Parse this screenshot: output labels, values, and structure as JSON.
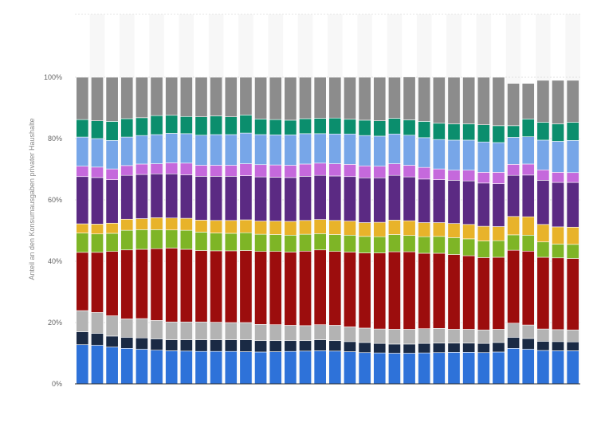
{
  "chart_data": {
    "type": "bar",
    "stacked": true,
    "normalized": true,
    "title": "",
    "xlabel": "",
    "ylabel": "Anteil an den Konsumausgaben privater Haushalte",
    "ylim": [
      0,
      100
    ],
    "yticks": [
      0,
      20,
      40,
      60,
      80,
      100
    ],
    "ytick_labels": [
      "0%",
      "20%",
      "40%",
      "60%",
      "80%",
      "100%"
    ],
    "grid": true,
    "legend": "none",
    "x_tick_labels_visible": false,
    "bar_count": 34,
    "series": [
      {
        "color": "#2e72d9",
        "values": [
          12.8,
          12.6,
          12.0,
          11.6,
          11.3,
          11.0,
          10.8,
          10.7,
          10.6,
          10.6,
          10.6,
          10.5,
          10.4,
          10.5,
          10.6,
          10.7,
          10.8,
          10.7,
          10.5,
          10.2,
          10.1,
          10.0,
          10.0,
          10.1,
          10.2,
          10.3,
          10.3,
          10.2,
          10.4,
          11.6,
          11.3,
          10.9,
          10.8,
          10.8
        ]
      },
      {
        "color": "#1a2a44",
        "values": [
          4.2,
          3.9,
          3.6,
          3.6,
          3.7,
          3.7,
          3.6,
          3.7,
          3.8,
          3.8,
          3.8,
          3.9,
          3.7,
          3.6,
          3.5,
          3.4,
          3.6,
          3.4,
          3.3,
          3.3,
          3.1,
          3.0,
          3.0,
          3.1,
          3.1,
          3.0,
          3.0,
          3.0,
          3.1,
          3.6,
          3.5,
          3.0,
          3.0,
          2.9
        ]
      },
      {
        "color": "#b3b3b3",
        "values": [
          6.9,
          6.8,
          6.6,
          6.0,
          6.3,
          6.0,
          5.8,
          5.8,
          5.8,
          5.7,
          5.6,
          5.6,
          5.3,
          5.2,
          5.0,
          4.9,
          4.9,
          5.0,
          4.8,
          4.7,
          4.7,
          4.8,
          4.8,
          4.8,
          4.8,
          4.5,
          4.5,
          4.4,
          4.3,
          4.6,
          4.4,
          4.0,
          3.9,
          3.9
        ]
      },
      {
        "color": "#9c0d0d",
        "values": [
          19.0,
          19.6,
          21.0,
          22.5,
          22.6,
          23.4,
          24.1,
          23.7,
          23.3,
          23.3,
          23.4,
          23.5,
          23.8,
          23.9,
          23.9,
          24.3,
          24.4,
          24.1,
          24.4,
          24.5,
          24.8,
          25.3,
          25.3,
          24.6,
          24.5,
          24.4,
          24.0,
          23.6,
          23.5,
          23.8,
          24.1,
          23.4,
          23.4,
          23.3
        ]
      },
      {
        "color": "#7eb526",
        "values": [
          6.3,
          6.0,
          5.9,
          6.4,
          6.4,
          6.2,
          5.9,
          6.2,
          6.0,
          5.8,
          5.7,
          5.8,
          5.6,
          5.5,
          5.5,
          5.5,
          5.3,
          5.5,
          5.5,
          5.4,
          5.3,
          5.6,
          5.3,
          5.4,
          5.5,
          5.5,
          5.5,
          5.4,
          5.4,
          5.0,
          5.2,
          5.0,
          4.5,
          4.6
        ]
      },
      {
        "color": "#e8b32a",
        "values": [
          3.0,
          3.2,
          3.3,
          3.6,
          3.6,
          3.9,
          3.9,
          3.9,
          3.9,
          4.1,
          4.2,
          4.2,
          4.3,
          4.4,
          4.5,
          4.5,
          4.6,
          4.6,
          4.6,
          4.5,
          4.7,
          4.7,
          4.8,
          4.6,
          4.5,
          4.6,
          4.7,
          4.8,
          4.6,
          6.0,
          6.0,
          5.7,
          5.6,
          5.6
        ]
      },
      {
        "color": "#5b2a83",
        "values": [
          15.4,
          15.2,
          14.2,
          14.3,
          14.4,
          14.3,
          14.4,
          14.2,
          14.3,
          14.4,
          14.4,
          14.4,
          14.4,
          14.3,
          14.3,
          14.4,
          14.4,
          14.5,
          14.5,
          14.6,
          14.5,
          14.6,
          14.3,
          14.2,
          14.0,
          14.1,
          14.2,
          14.1,
          14.0,
          13.4,
          13.6,
          14.4,
          14.5,
          14.6
        ]
      },
      {
        "color": "#c569dc",
        "values": [
          3.4,
          3.4,
          3.5,
          3.2,
          3.4,
          3.3,
          3.6,
          3.8,
          3.6,
          3.6,
          3.6,
          3.9,
          4.0,
          4.0,
          4.0,
          4.0,
          4.0,
          4.0,
          4.0,
          3.9,
          3.8,
          3.8,
          3.8,
          3.8,
          3.5,
          3.3,
          3.5,
          3.5,
          3.7,
          3.6,
          3.6,
          3.4,
          3.3,
          3.2
        ]
      },
      {
        "color": "#77a6e8",
        "values": [
          9.5,
          9.3,
          9.3,
          9.3,
          9.3,
          9.5,
          9.6,
          9.6,
          9.8,
          10.0,
          10.0,
          10.0,
          9.8,
          9.8,
          9.9,
          9.9,
          9.6,
          9.7,
          9.9,
          9.9,
          9.8,
          9.7,
          9.8,
          9.7,
          9.6,
          9.8,
          9.8,
          9.9,
          9.7,
          8.8,
          8.9,
          9.7,
          10.1,
          10.5
        ]
      },
      {
        "color": "#0b8e6d",
        "values": [
          5.7,
          5.8,
          6.2,
          6.0,
          5.8,
          6.2,
          5.9,
          5.6,
          6.0,
          6.1,
          5.8,
          5.9,
          5.1,
          5.0,
          4.8,
          4.9,
          5.0,
          5.2,
          4.8,
          5.0,
          5.0,
          5.1,
          5.0,
          5.3,
          5.3,
          5.3,
          5.3,
          5.6,
          5.5,
          3.8,
          5.8,
          5.8,
          5.7,
          5.9
        ]
      },
      {
        "color": "#8c8c8c",
        "values": [
          13.8,
          14.2,
          14.4,
          13.5,
          13.2,
          12.5,
          12.4,
          12.8,
          12.9,
          12.6,
          12.9,
          12.3,
          13.6,
          13.8,
          14.0,
          13.5,
          13.4,
          13.3,
          13.7,
          14.0,
          14.2,
          13.4,
          14.0,
          14.4,
          15.0,
          15.2,
          15.2,
          15.5,
          15.8,
          13.8,
          11.6,
          13.7,
          14.2,
          13.7
        ]
      }
    ]
  }
}
